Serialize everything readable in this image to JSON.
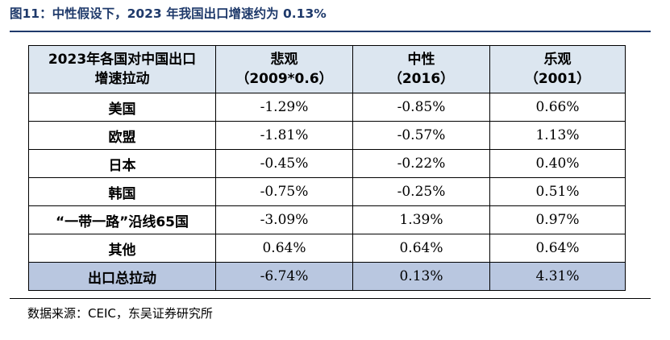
{
  "figure": {
    "title": "图11：中性假设下，2023 年我国出口增速约为 0.13%",
    "source": "数据来源：CEIC，东吴证券研究所"
  },
  "table": {
    "header": {
      "col0": [
        "2023年各国对中国出口",
        "增速拉动"
      ],
      "col1": [
        "悲观",
        "（2009*0.6）"
      ],
      "col2": [
        "中性",
        "（2016）"
      ],
      "col3": [
        "乐观",
        "（2001）"
      ]
    },
    "rows": [
      {
        "label": "美国",
        "pessimistic": "-1.29%",
        "neutral": "-0.85%",
        "optimistic": "0.66%"
      },
      {
        "label": "欧盟",
        "pessimistic": "-1.81%",
        "neutral": "-0.57%",
        "optimistic": "1.13%"
      },
      {
        "label": "日本",
        "pessimistic": "-0.45%",
        "neutral": "-0.22%",
        "optimistic": "0.40%"
      },
      {
        "label": "韩国",
        "pessimistic": "-0.75%",
        "neutral": "-0.25%",
        "optimistic": "0.51%"
      },
      {
        "label": "“一带一路”沿线65国",
        "pessimistic": "-3.09%",
        "neutral": "1.39%",
        "optimistic": "0.97%"
      },
      {
        "label": "其他",
        "pessimistic": "0.64%",
        "neutral": "0.64%",
        "optimistic": "0.64%"
      }
    ],
    "total": {
      "label": "出口总拉动",
      "pessimistic": "-6.74%",
      "neutral": "0.13%",
      "optimistic": "4.31%"
    }
  },
  "colors": {
    "title": "#1f3a6b",
    "header_fill": "#dce6f0",
    "total_fill": "#b9c7e0"
  }
}
